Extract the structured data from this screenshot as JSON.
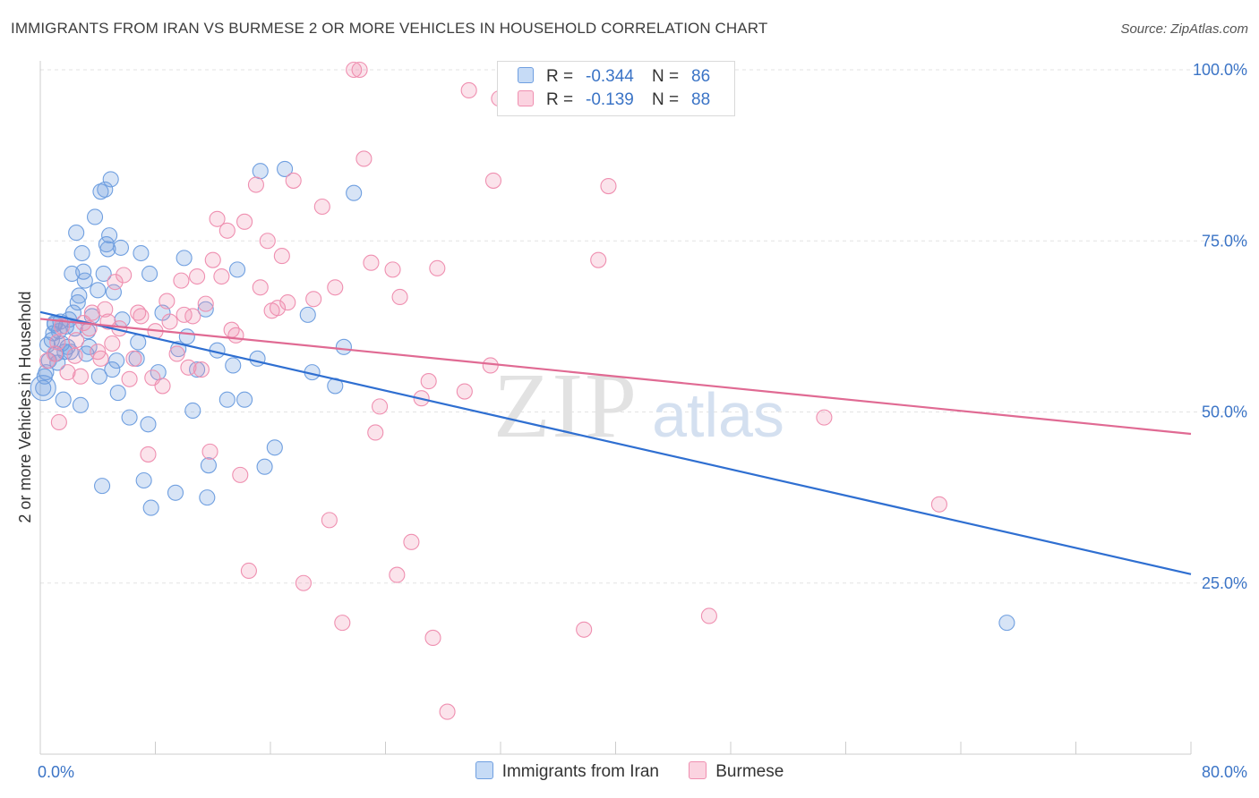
{
  "title": "IMMIGRANTS FROM IRAN VS BURMESE 2 OR MORE VEHICLES IN HOUSEHOLD CORRELATION CHART",
  "source": "Source: ZipAtlas.com",
  "watermark": {
    "zip": "ZIP",
    "atlas": "atlas"
  },
  "legend_top": [
    {
      "r_label": "R =",
      "r_value": "-0.344",
      "n_label": "N =",
      "n_value": "86",
      "color": "#6f9fe0"
    },
    {
      "r_label": "R =",
      "r_value": "-0.139",
      "n_label": "N =",
      "n_value": "88",
      "color": "#ef8fb0"
    }
  ],
  "chart_data": {
    "type": "scatter",
    "ylabel": "2 or more Vehicles in Household",
    "xlim": [
      0,
      80
    ],
    "ylim": [
      0,
      100
    ],
    "x_tick_labels": [
      "0.0%",
      "80.0%"
    ],
    "y_ticks": [
      25,
      50,
      75,
      100
    ],
    "y_tick_labels": [
      "25.0%",
      "50.0%",
      "75.0%",
      "100.0%"
    ],
    "grid": true,
    "legend_position": "bottom",
    "series": [
      {
        "name": "Immigrants from Iran",
        "color": "#6f9fe0",
        "line_color": "#2f6fd1",
        "trend": {
          "x": [
            0,
            80
          ],
          "y": [
            64.6,
            26.3
          ]
        },
        "points": [
          [
            0.2,
            53.5
          ],
          [
            0.4,
            55.8
          ],
          [
            0.5,
            59.8
          ],
          [
            0.6,
            57.5
          ],
          [
            0.8,
            60.5
          ],
          [
            0.9,
            61.5
          ],
          [
            1.0,
            62.8
          ],
          [
            1.1,
            58.5
          ],
          [
            1.2,
            57.2
          ],
          [
            1.3,
            61.8
          ],
          [
            1.4,
            63.2
          ],
          [
            1.5,
            60.0
          ],
          [
            1.6,
            51.8
          ],
          [
            1.7,
            58.8
          ],
          [
            1.8,
            62.5
          ],
          [
            1.9,
            59.5
          ],
          [
            2.0,
            63.5
          ],
          [
            2.1,
            58.8
          ],
          [
            2.2,
            70.2
          ],
          [
            2.3,
            64.5
          ],
          [
            2.4,
            62.2
          ],
          [
            2.5,
            76.2
          ],
          [
            2.6,
            66.0
          ],
          [
            2.7,
            67.0
          ],
          [
            2.8,
            51.0
          ],
          [
            2.9,
            73.2
          ],
          [
            3.0,
            70.5
          ],
          [
            3.1,
            69.2
          ],
          [
            3.2,
            58.5
          ],
          [
            3.3,
            61.8
          ],
          [
            3.4,
            59.5
          ],
          [
            3.6,
            64.0
          ],
          [
            3.8,
            78.5
          ],
          [
            4.0,
            67.8
          ],
          [
            4.1,
            55.2
          ],
          [
            4.2,
            82.2
          ],
          [
            4.3,
            39.2
          ],
          [
            4.4,
            70.2
          ],
          [
            4.5,
            82.5
          ],
          [
            4.6,
            74.5
          ],
          [
            4.7,
            73.8
          ],
          [
            4.8,
            75.8
          ],
          [
            4.9,
            84.0
          ],
          [
            5.0,
            56.2
          ],
          [
            5.1,
            67.5
          ],
          [
            5.3,
            57.5
          ],
          [
            5.4,
            52.8
          ],
          [
            5.6,
            74.0
          ],
          [
            5.7,
            63.5
          ],
          [
            6.2,
            49.2
          ],
          [
            6.7,
            57.8
          ],
          [
            6.8,
            60.2
          ],
          [
            7.0,
            73.2
          ],
          [
            7.2,
            40.0
          ],
          [
            7.5,
            48.2
          ],
          [
            7.6,
            70.2
          ],
          [
            7.7,
            36.0
          ],
          [
            8.2,
            55.8
          ],
          [
            8.5,
            64.5
          ],
          [
            9.4,
            38.2
          ],
          [
            9.6,
            59.2
          ],
          [
            10.0,
            72.5
          ],
          [
            10.2,
            61.0
          ],
          [
            10.6,
            50.2
          ],
          [
            10.9,
            56.2
          ],
          [
            11.5,
            65.0
          ],
          [
            11.6,
            37.5
          ],
          [
            11.7,
            42.2
          ],
          [
            12.3,
            59.0
          ],
          [
            13.0,
            51.8
          ],
          [
            13.4,
            56.8
          ],
          [
            13.7,
            70.8
          ],
          [
            14.2,
            51.8
          ],
          [
            15.1,
            57.8
          ],
          [
            15.3,
            85.2
          ],
          [
            15.6,
            42.0
          ],
          [
            16.3,
            44.8
          ],
          [
            17.0,
            85.5
          ],
          [
            18.6,
            64.2
          ],
          [
            18.9,
            55.8
          ],
          [
            20.5,
            53.8
          ],
          [
            21.1,
            59.5
          ],
          [
            21.8,
            82.0
          ],
          [
            67.2,
            19.2
          ],
          [
            0.3,
            55.2
          ],
          [
            1.0,
            63.0
          ]
        ]
      },
      {
        "name": "Burmese",
        "color": "#ef8fb0",
        "line_color": "#e06a93",
        "trend": {
          "x": [
            0,
            80
          ],
          "y": [
            63.6,
            46.8
          ]
        },
        "points": [
          [
            0.5,
            57.5
          ],
          [
            1.0,
            58.5
          ],
          [
            1.2,
            60.2
          ],
          [
            1.3,
            48.5
          ],
          [
            1.5,
            62.5
          ],
          [
            1.9,
            55.8
          ],
          [
            2.4,
            58.2
          ],
          [
            2.5,
            60.5
          ],
          [
            2.8,
            55.2
          ],
          [
            3.0,
            63.0
          ],
          [
            3.4,
            62.2
          ],
          [
            3.6,
            64.5
          ],
          [
            4.0,
            58.8
          ],
          [
            4.2,
            57.8
          ],
          [
            4.5,
            65.0
          ],
          [
            4.7,
            63.2
          ],
          [
            5.0,
            60.0
          ],
          [
            5.2,
            69.0
          ],
          [
            5.5,
            62.2
          ],
          [
            5.8,
            70.0
          ],
          [
            6.2,
            54.8
          ],
          [
            6.5,
            57.8
          ],
          [
            6.8,
            64.5
          ],
          [
            7.0,
            64.0
          ],
          [
            7.5,
            43.8
          ],
          [
            7.8,
            55.0
          ],
          [
            8.0,
            61.8
          ],
          [
            8.5,
            53.8
          ],
          [
            8.8,
            66.2
          ],
          [
            9.0,
            63.2
          ],
          [
            9.5,
            58.5
          ],
          [
            9.8,
            69.2
          ],
          [
            10.0,
            64.2
          ],
          [
            10.3,
            56.5
          ],
          [
            10.6,
            64.0
          ],
          [
            10.9,
            69.8
          ],
          [
            11.2,
            56.2
          ],
          [
            11.5,
            65.8
          ],
          [
            11.8,
            44.2
          ],
          [
            12.0,
            72.2
          ],
          [
            12.3,
            78.2
          ],
          [
            12.6,
            69.8
          ],
          [
            13.0,
            76.5
          ],
          [
            13.3,
            62.0
          ],
          [
            13.6,
            61.2
          ],
          [
            13.9,
            40.8
          ],
          [
            14.2,
            77.8
          ],
          [
            14.5,
            26.8
          ],
          [
            15.0,
            83.2
          ],
          [
            15.3,
            68.2
          ],
          [
            15.8,
            75.0
          ],
          [
            16.1,
            64.8
          ],
          [
            16.5,
            65.2
          ],
          [
            16.8,
            72.8
          ],
          [
            17.2,
            66.0
          ],
          [
            17.6,
            83.8
          ],
          [
            18.3,
            25.0
          ],
          [
            19.0,
            66.5
          ],
          [
            19.6,
            80.0
          ],
          [
            20.1,
            34.2
          ],
          [
            20.5,
            68.2
          ],
          [
            21.0,
            19.2
          ],
          [
            21.8,
            100.0
          ],
          [
            22.2,
            100.0
          ],
          [
            22.5,
            87.0
          ],
          [
            23.0,
            71.8
          ],
          [
            23.3,
            47.0
          ],
          [
            23.6,
            50.8
          ],
          [
            24.5,
            70.8
          ],
          [
            24.8,
            26.2
          ],
          [
            25.0,
            66.8
          ],
          [
            25.8,
            31.0
          ],
          [
            26.5,
            52.0
          ],
          [
            27.0,
            54.5
          ],
          [
            27.3,
            17.0
          ],
          [
            27.6,
            71.0
          ],
          [
            28.3,
            6.2
          ],
          [
            29.5,
            53.0
          ],
          [
            29.8,
            97.0
          ],
          [
            31.3,
            56.8
          ],
          [
            31.5,
            83.8
          ],
          [
            31.9,
            95.8
          ],
          [
            37.8,
            18.2
          ],
          [
            38.8,
            72.2
          ],
          [
            39.5,
            83.0
          ],
          [
            46.5,
            20.2
          ],
          [
            54.5,
            49.2
          ],
          [
            62.5,
            36.5
          ]
        ]
      }
    ]
  }
}
